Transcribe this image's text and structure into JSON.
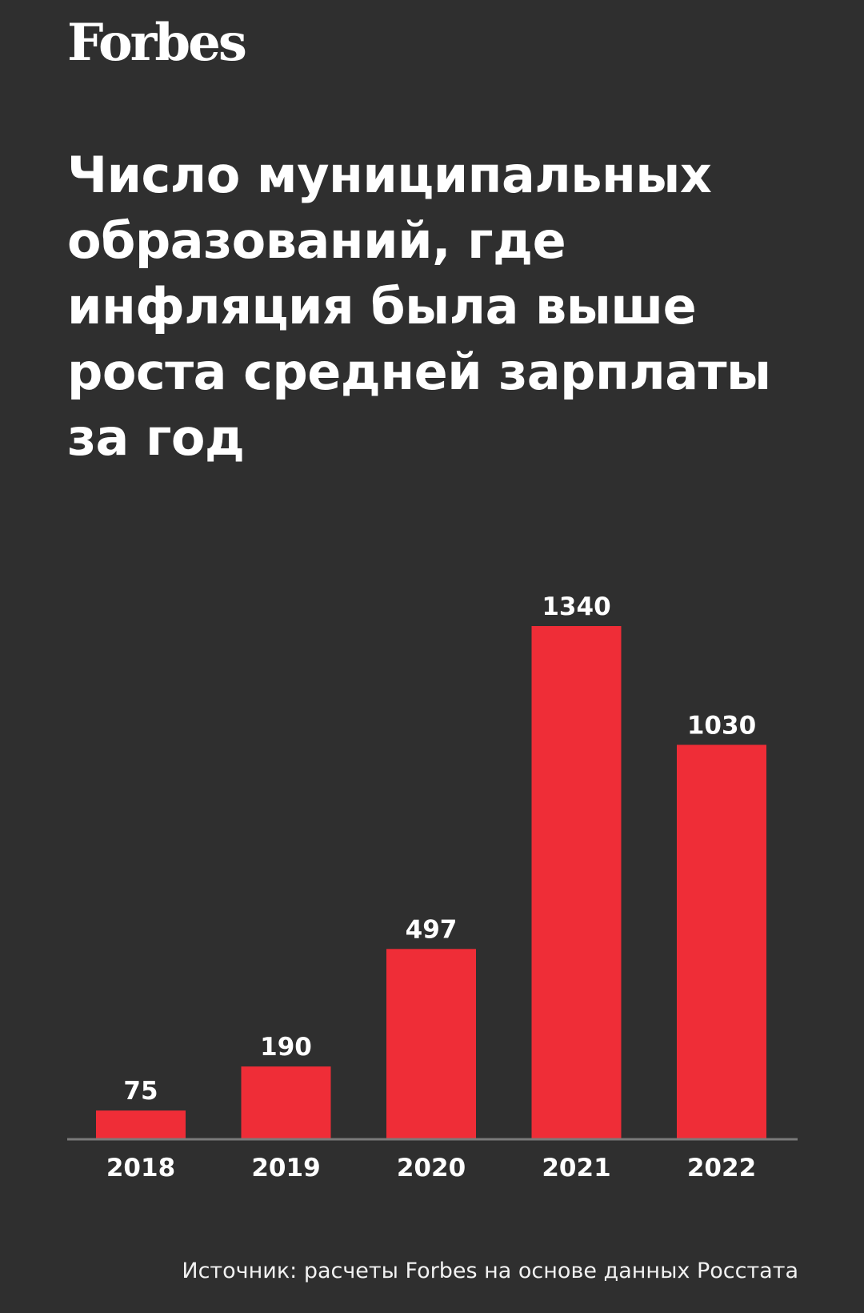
{
  "brand": {
    "logo_text": "Forbes"
  },
  "title": "Число муниципальных образований, где инфляция была выше роста средней зарплаты за год",
  "source": "Источник: расчеты Forbes на основе данных Росстата",
  "colors": {
    "background": "#2f2f2f",
    "bar": "#ef2d37",
    "axis": "#7a7a7a",
    "text": "#ffffff"
  },
  "chart_data": {
    "type": "bar",
    "categories": [
      "2018",
      "2019",
      "2020",
      "2021",
      "2022"
    ],
    "values": [
      75,
      190,
      497,
      1340,
      1030
    ],
    "data_labels": [
      "75",
      "190",
      "497",
      "1340",
      "1030"
    ],
    "xlabel": "",
    "ylabel": "",
    "ylim": [
      0,
      1340
    ],
    "grid": false,
    "legend": "none"
  }
}
